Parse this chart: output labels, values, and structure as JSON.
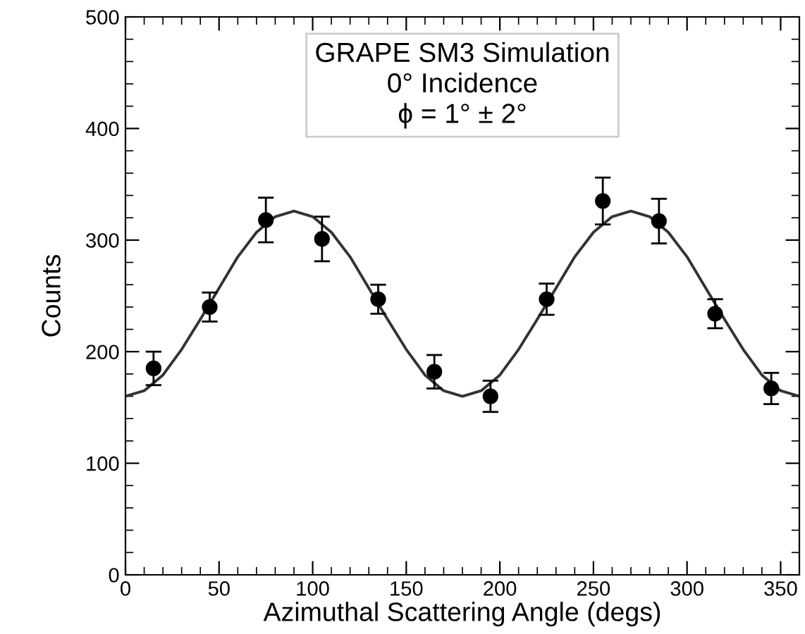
{
  "chart_data": {
    "type": "scatter",
    "xlabel": "Azimuthal Scattering Angle (degs)",
    "ylabel": "Counts",
    "annotations": [
      "GRAPE SM3 Simulation\n0° Incidence\nϕ = 1° ± 2°"
    ],
    "xlim": [
      0,
      360
    ],
    "xticks": [
      0,
      50,
      100,
      150,
      200,
      250,
      300,
      350
    ],
    "ylim": [
      0,
      500
    ],
    "yticks": [
      0,
      100,
      200,
      300,
      400,
      500
    ],
    "grid": false,
    "legend": false,
    "marker": "circle",
    "series": [
      {
        "color": "#000000",
        "x": [
          15,
          45,
          75,
          105,
          135,
          165,
          195,
          225,
          255,
          285,
          315,
          345
        ],
        "values": [
          185,
          240,
          318,
          301,
          247,
          182,
          160,
          247,
          335,
          317,
          234,
          167
        ],
        "errors": [
          15,
          13,
          20,
          20,
          13,
          15,
          14,
          14,
          21,
          20,
          13,
          14
        ]
      },
      {
        "type": "line",
        "color": "#333333",
        "marker": "none",
        "line_style": "solid",
        "x": [
          0,
          10,
          20,
          30,
          40,
          50,
          60,
          70,
          80,
          90,
          100,
          110,
          120,
          130,
          140,
          150,
          160,
          170,
          180,
          190,
          200,
          210,
          220,
          230,
          240,
          250,
          260,
          270,
          280,
          290,
          300,
          310,
          320,
          330,
          340,
          350,
          360
        ],
        "values": [
          160,
          165,
          179,
          202,
          229,
          257,
          285,
          307,
          321,
          326,
          321,
          307,
          285,
          257,
          229,
          202,
          179,
          165,
          160,
          165,
          179,
          202,
          229,
          257,
          285,
          307,
          321,
          326,
          321,
          307,
          285,
          257,
          229,
          202,
          179,
          165,
          160
        ]
      }
    ]
  }
}
